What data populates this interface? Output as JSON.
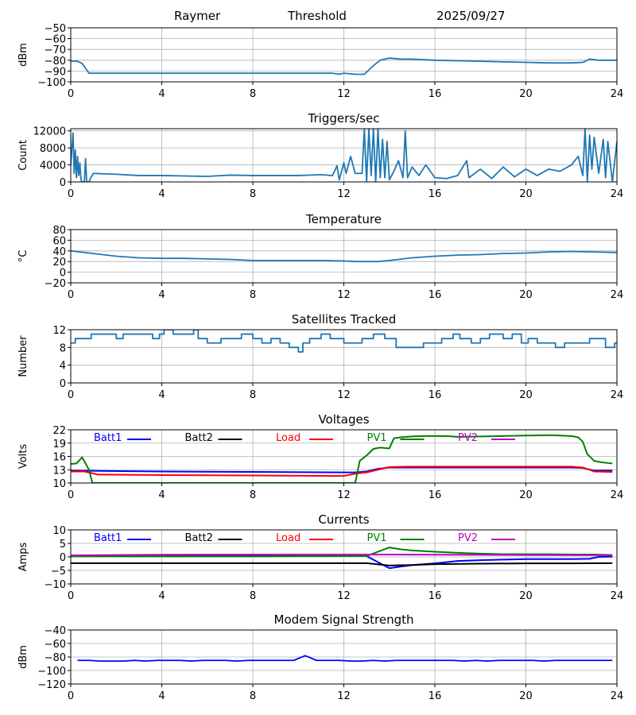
{
  "header": {
    "station": "Raymer",
    "mode": "Threshold",
    "date": "2025/09/27"
  },
  "legend_colors": {
    "Batt1": "#0000ff",
    "Batt2": "#000000",
    "Load": "#ff0000",
    "PV1": "#008000",
    "PV2": "#bf00bf"
  },
  "chart_data": [
    {
      "type": "line",
      "title": "",
      "xlabel": "",
      "ylabel": "dBm",
      "xlim": [
        0,
        24
      ],
      "ylim": [
        -100,
        -50
      ],
      "xticks": [
        0,
        4,
        8,
        12,
        16,
        20,
        24
      ],
      "yticks": [
        -100,
        -90,
        -80,
        -70,
        -60,
        -50
      ],
      "grid": true,
      "series": [
        {
          "name": "Signal",
          "color": "#1f77b4",
          "x": [
            0,
            0.3,
            0.5,
            0.8,
            2,
            4,
            6,
            8,
            10,
            11.5,
            11.8,
            12,
            12.5,
            12.9,
            13.3,
            13.6,
            14,
            14.5,
            15,
            16,
            17,
            18,
            19,
            20,
            21,
            22,
            22.5,
            22.8,
            23.2,
            24
          ],
          "y": [
            -81,
            -81,
            -83,
            -92,
            -92,
            -92,
            -92,
            -92,
            -92,
            -92,
            -93,
            -92,
            -93,
            -93,
            -85,
            -80,
            -78,
            -79,
            -79,
            -80,
            -80.5,
            -81,
            -81.5,
            -82,
            -82.5,
            -82.5,
            -82,
            -79,
            -80,
            -80
          ]
        }
      ]
    },
    {
      "type": "line",
      "title": "Triggers/sec",
      "xlabel": "",
      "ylabel": "Count",
      "xlim": [
        0,
        24
      ],
      "ylim": [
        0,
        12500
      ],
      "xticks": [
        0,
        4,
        8,
        12,
        16,
        20,
        24
      ],
      "yticks": [
        0,
        4000,
        8000,
        12000
      ],
      "grid": true,
      "series": [
        {
          "name": "Triggers",
          "color": "#1f77b4",
          "x": [
            0,
            0.1,
            0.15,
            0.2,
            0.25,
            0.3,
            0.35,
            0.4,
            0.45,
            0.5,
            0.55,
            0.6,
            0.65,
            0.7,
            0.8,
            0.9,
            1,
            2,
            3,
            4,
            5,
            6,
            7,
            8,
            9,
            10,
            11,
            11.5,
            11.7,
            11.8,
            12,
            12.1,
            12.3,
            12.5,
            12.8,
            12.9,
            13,
            13.1,
            13.2,
            13.3,
            13.4,
            13.5,
            13.6,
            13.7,
            13.8,
            13.9,
            14,
            14.2,
            14.4,
            14.6,
            14.7,
            14.8,
            15,
            15.3,
            15.6,
            16,
            16.5,
            17,
            17.4,
            17.5,
            18,
            18.5,
            19,
            19.5,
            20,
            20.5,
            21,
            21.5,
            22,
            22.3,
            22.5,
            22.6,
            22.7,
            22.8,
            22.9,
            23,
            23.2,
            23.4,
            23.5,
            23.6,
            23.8,
            24
          ],
          "y": [
            4000,
            11500,
            2000,
            7500,
            1000,
            6000,
            1500,
            4500,
            500,
            0,
            0,
            0,
            5500,
            0,
            0,
            1200,
            2000,
            1800,
            1500,
            1500,
            1400,
            1300,
            1600,
            1500,
            1500,
            1500,
            1700,
            1500,
            3800,
            500,
            4500,
            2000,
            6000,
            2000,
            2000,
            12500,
            0,
            12500,
            1500,
            12500,
            0,
            12500,
            1000,
            10000,
            1000,
            9500,
            500,
            2500,
            5000,
            1000,
            12000,
            1000,
            3500,
            1500,
            4000,
            1000,
            800,
            1500,
            5000,
            1000,
            3000,
            800,
            3500,
            1200,
            3000,
            1500,
            3000,
            2500,
            4000,
            6000,
            1500,
            12500,
            0,
            11000,
            3000,
            10500,
            2000,
            10000,
            1000,
            9500,
            0,
            9500
          ]
        }
      ]
    },
    {
      "type": "line",
      "title": "Temperature",
      "xlabel": "",
      "ylabel": "°C",
      "xlim": [
        0,
        24
      ],
      "ylim": [
        -20,
        80
      ],
      "xticks": [
        0,
        4,
        8,
        12,
        16,
        20,
        24
      ],
      "yticks": [
        -20,
        0,
        20,
        40,
        60,
        80
      ],
      "grid": true,
      "series": [
        {
          "name": "Temperature",
          "color": "#1f77b4",
          "x": [
            0,
            1,
            2,
            3,
            4,
            5,
            6,
            7,
            8,
            9,
            10,
            11,
            12,
            12.5,
            13,
            13.5,
            14,
            15,
            16,
            17,
            18,
            19,
            20,
            21,
            22,
            23,
            24
          ],
          "y": [
            40,
            35,
            30,
            27,
            26,
            26,
            25,
            24,
            22,
            22,
            22,
            22,
            21,
            20,
            20,
            20,
            22,
            27,
            30,
            32,
            33,
            35,
            36,
            38,
            39,
            38,
            37
          ]
        }
      ]
    },
    {
      "type": "line",
      "title": "Satellites Tracked",
      "xlabel": "",
      "ylabel": "Number",
      "xlim": [
        0,
        24
      ],
      "ylim": [
        0,
        12
      ],
      "xticks": [
        0,
        4,
        8,
        12,
        16,
        20,
        24
      ],
      "yticks": [
        0,
        4,
        8,
        12
      ],
      "grid": true,
      "series": [
        {
          "name": "Satellites",
          "color": "#1f77b4",
          "step": true,
          "x": [
            0,
            0.2,
            0.5,
            0.9,
            1.3,
            2.0,
            2.3,
            3.0,
            3.6,
            3.9,
            4.1,
            4.5,
            5.0,
            5.4,
            5.6,
            6.0,
            6.6,
            7.2,
            7.5,
            8.0,
            8.4,
            8.8,
            9.2,
            9.6,
            10.0,
            10.2,
            10.5,
            11.0,
            11.4,
            11.7,
            12.0,
            12.4,
            12.8,
            13.0,
            13.3,
            13.8,
            14.3,
            15.2,
            15.5,
            16.0,
            16.3,
            16.8,
            17.1,
            17.6,
            18.0,
            18.4,
            19.0,
            19.4,
            19.8,
            20.1,
            20.5,
            20.9,
            21.3,
            21.7,
            22.0,
            22.8,
            23.1,
            23.5,
            23.9
          ],
          "y": [
            9,
            10,
            10,
            11,
            11,
            10,
            11,
            11,
            10,
            11,
            12,
            11,
            11,
            12,
            10,
            9,
            10,
            10,
            11,
            10,
            9,
            10,
            9,
            8,
            7,
            9,
            10,
            11,
            10,
            10,
            9,
            9,
            10,
            10,
            11,
            10,
            8,
            8,
            9,
            9,
            10,
            11,
            10,
            9,
            10,
            11,
            10,
            11,
            9,
            10,
            9,
            9,
            8,
            9,
            9,
            10,
            10,
            8,
            9
          ]
        }
      ]
    },
    {
      "type": "line",
      "title": "Voltages",
      "xlabel": "",
      "ylabel": "Volts",
      "xlim": [
        0,
        24
      ],
      "ylim": [
        10,
        22
      ],
      "xticks": [
        0,
        4,
        8,
        12,
        16,
        20,
        24
      ],
      "yticks": [
        10,
        13,
        16,
        19,
        22
      ],
      "grid": true,
      "legend": "top inline",
      "series": [
        {
          "name": "Batt1",
          "color": "#0000ff",
          "x": [
            0,
            4,
            8,
            12,
            12.5,
            13,
            13.5,
            14,
            15,
            16,
            18,
            20,
            22,
            22.5,
            23,
            23.8
          ],
          "y": [
            12.8,
            12.6,
            12.5,
            12.4,
            12.4,
            12.6,
            13.2,
            13.5,
            13.5,
            13.5,
            13.5,
            13.5,
            13.5,
            13.4,
            12.8,
            12.8
          ]
        },
        {
          "name": "Batt2",
          "color": "#000000",
          "x": [],
          "y": []
        },
        {
          "name": "Load",
          "color": "#ff0000",
          "x": [
            0,
            0.6,
            1.2,
            4,
            8,
            12,
            12.5,
            13,
            13.5,
            14,
            15,
            16,
            18,
            20,
            22,
            22.5,
            23,
            23.8
          ],
          "y": [
            12.6,
            12.6,
            11.9,
            11.8,
            11.7,
            11.6,
            12.1,
            12.4,
            13.0,
            13.6,
            13.7,
            13.7,
            13.7,
            13.7,
            13.7,
            13.5,
            12.6,
            12.5
          ]
        },
        {
          "name": "PV1",
          "color": "#008000",
          "x": [
            0,
            0.25,
            0.5,
            0.8,
            0.95,
            12.5,
            12.7,
            13.0,
            13.3,
            13.6,
            14.0,
            14.2,
            14.5,
            15,
            15.5,
            16.5,
            17,
            18,
            19,
            20,
            21,
            21.5,
            22,
            22.3,
            22.5,
            22.7,
            23,
            23.3,
            23.8
          ],
          "y": [
            14.3,
            14.4,
            15.8,
            13,
            10,
            10,
            15,
            16.2,
            17.7,
            18.0,
            17.8,
            20.1,
            20.3,
            20.5,
            20.6,
            20.6,
            20.4,
            20.5,
            20.6,
            20.7,
            20.8,
            20.7,
            20.6,
            20.3,
            19.3,
            16.5,
            15.0,
            14.7,
            14.4
          ]
        },
        {
          "name": "PV2",
          "color": "#bf00bf",
          "x": [],
          "y": []
        }
      ]
    },
    {
      "type": "line",
      "title": "Currents",
      "xlabel": "",
      "ylabel": "Amps",
      "xlim": [
        0,
        24
      ],
      "ylim": [
        -10,
        10
      ],
      "xticks": [
        0,
        4,
        8,
        12,
        16,
        20,
        24
      ],
      "yticks": [
        -10,
        -5,
        0,
        5,
        10
      ],
      "grid": true,
      "legend": "top inline",
      "series": [
        {
          "name": "Batt1",
          "color": "#0000ff",
          "x": [
            0,
            4,
            8,
            12,
            13,
            14,
            15,
            16,
            17,
            18,
            19,
            20,
            21,
            22,
            22.8,
            23.2,
            23.8
          ],
          "y": [
            0.3,
            0.3,
            0.3,
            0.3,
            0.3,
            -4.2,
            -3.0,
            -2.4,
            -1.5,
            -1.2,
            -1.0,
            -0.8,
            -0.8,
            -0.8,
            -0.7,
            0,
            0.1
          ]
        },
        {
          "name": "Batt2",
          "color": "#000000",
          "x": [
            0,
            13,
            14,
            15,
            16,
            18,
            20,
            22,
            23.8
          ],
          "y": [
            -2.3,
            -2.3,
            -3.2,
            -3.0,
            -2.7,
            -2.5,
            -2.4,
            -2.4,
            -2.3
          ]
        },
        {
          "name": "Load",
          "color": "#ff0000",
          "x": [],
          "y": []
        },
        {
          "name": "PV1",
          "color": "#008000",
          "x": [
            0,
            8,
            12,
            13,
            14,
            14.5,
            15,
            16,
            17,
            18,
            19,
            20,
            21,
            22,
            23,
            23.8
          ],
          "y": [
            0.2,
            0.2,
            0.3,
            0.3,
            3.5,
            2.8,
            2.4,
            1.9,
            1.5,
            1.2,
            1.0,
            1.0,
            1.0,
            0.9,
            0.9,
            0.7
          ]
        },
        {
          "name": "PV2",
          "color": "#bf00bf",
          "x": [
            0,
            4,
            8,
            12,
            16,
            20,
            23.8
          ],
          "y": [
            0.6,
            0.8,
            0.9,
            0.9,
            0.8,
            0.7,
            0.6
          ]
        }
      ]
    },
    {
      "type": "line",
      "title": "Modem Signal Strength",
      "xlabel": "",
      "ylabel": "dBm",
      "xlim": [
        0,
        24
      ],
      "ylim": [
        -120,
        -40
      ],
      "xticks": [
        0,
        4,
        8,
        12,
        16,
        20,
        24
      ],
      "yticks": [
        -120,
        -100,
        -80,
        -60,
        -40
      ],
      "grid": true,
      "series": [
        {
          "name": "Modem",
          "color": "#0000ff",
          "x": [
            0.3,
            0.8,
            1.3,
            1.8,
            2.3,
            2.8,
            3.3,
            3.8,
            4.3,
            4.8,
            5.3,
            5.8,
            6.3,
            6.8,
            7.3,
            7.8,
            8.3,
            8.8,
            9.3,
            9.8,
            10.3,
            10.8,
            11.3,
            11.8,
            12.3,
            12.8,
            13.3,
            13.8,
            14.3,
            14.8,
            15.3,
            15.8,
            16.3,
            16.8,
            17.3,
            17.8,
            18.3,
            18.8,
            19.3,
            19.8,
            20.3,
            20.8,
            21.3,
            21.8,
            22.3,
            22.8,
            23.3,
            23.8
          ],
          "y": [
            -85,
            -85,
            -86,
            -86,
            -86,
            -85,
            -86,
            -85,
            -85,
            -85,
            -86,
            -85,
            -85,
            -85,
            -86,
            -85,
            -85,
            -85,
            -85,
            -85,
            -78,
            -85,
            -85,
            -85,
            -86,
            -86,
            -85,
            -86,
            -85,
            -85,
            -85,
            -85,
            -85,
            -85,
            -86,
            -85,
            -86,
            -85,
            -85,
            -85,
            -85,
            -86,
            -85,
            -85,
            -85,
            -85,
            -85,
            -85
          ]
        }
      ]
    }
  ]
}
